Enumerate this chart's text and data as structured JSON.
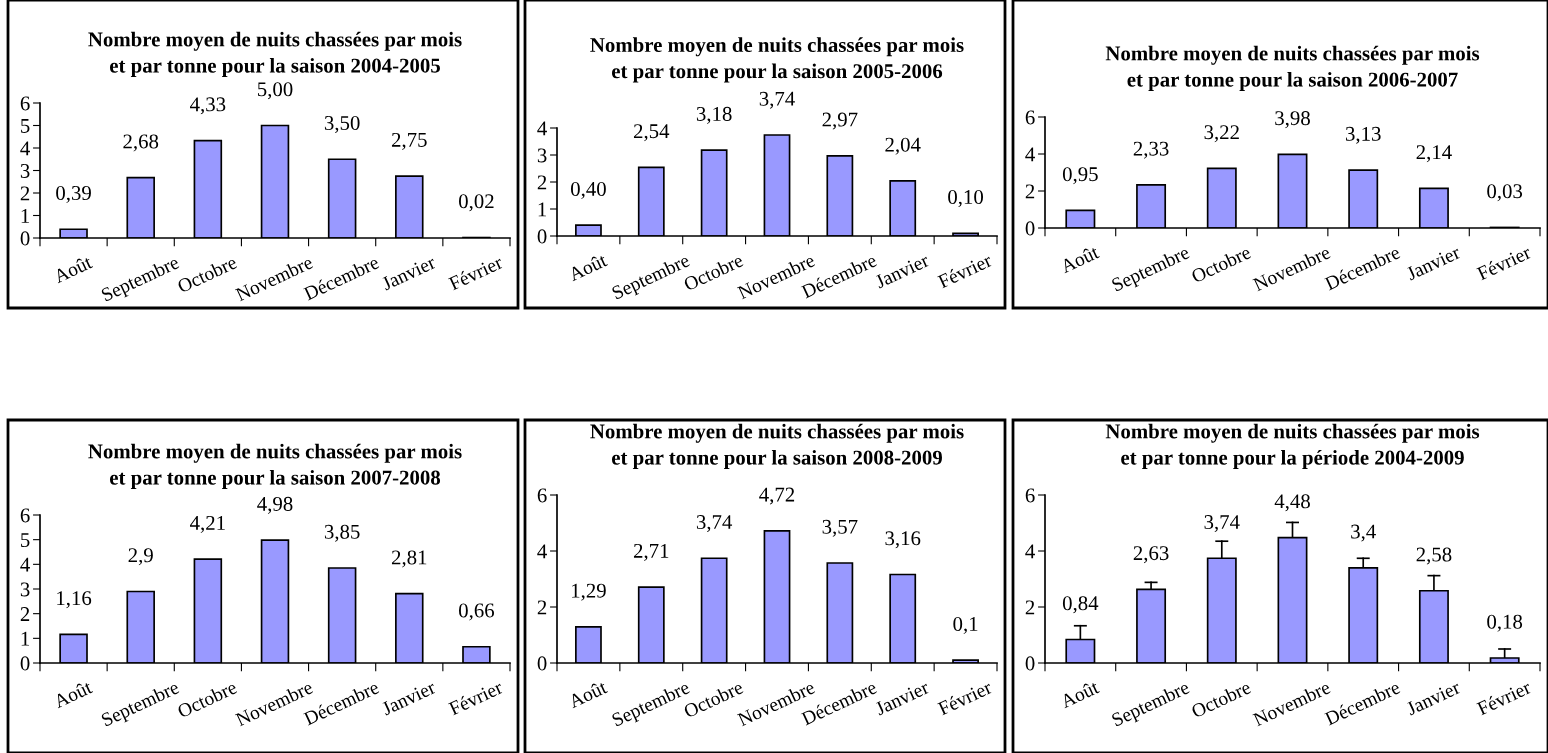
{
  "chart_data": [
    {
      "type": "bar",
      "title": "Nombre moyen de nuits chassées par mois\net par tonne pour la saison 2004-2005",
      "categories": [
        "Août",
        "Septembre",
        "Octobre",
        "Novembre",
        "Décembre",
        "Janvier",
        "Février"
      ],
      "values": [
        0.39,
        2.68,
        4.33,
        5.0,
        3.5,
        2.75,
        0.02
      ],
      "value_labels": [
        "0,39",
        "2,68",
        "4,33",
        "5,00",
        "3,50",
        "2,75",
        "0,02"
      ],
      "color": "#9999ff",
      "ylim": [
        0,
        6
      ],
      "yticks": [
        0,
        1,
        2,
        3,
        4,
        5,
        6
      ],
      "grid": false
    },
    {
      "type": "bar",
      "title": "Nombre moyen de nuits chassées par mois\net par tonne pour la saison 2005-2006",
      "categories": [
        "Août",
        "Septembre",
        "Octobre",
        "Novembre",
        "Décembre",
        "Janvier",
        "Février"
      ],
      "values": [
        0.4,
        2.54,
        3.18,
        3.74,
        2.97,
        2.04,
        0.1
      ],
      "value_labels": [
        "0,40",
        "2,54",
        "3,18",
        "3,74",
        "2,97",
        "2,04",
        "0,10"
      ],
      "color": "#9999ff",
      "ylim": [
        0,
        4
      ],
      "yticks": [
        0,
        1,
        2,
        3,
        4
      ],
      "grid": false
    },
    {
      "type": "bar",
      "title": "Nombre moyen de nuits chassées par mois\net par tonne pour la saison 2006-2007",
      "categories": [
        "Août",
        "Septembre",
        "Octobre",
        "Novembre",
        "Décembre",
        "Janvier",
        "Février"
      ],
      "values": [
        0.95,
        2.33,
        3.22,
        3.98,
        3.13,
        2.14,
        0.03
      ],
      "value_labels": [
        "0,95",
        "2,33",
        "3,22",
        "3,98",
        "3,13",
        "2,14",
        "0,03"
      ],
      "color": "#9999ff",
      "ylim": [
        0,
        6
      ],
      "yticks": [
        0,
        2,
        4,
        6
      ],
      "grid": false
    },
    {
      "type": "bar",
      "title": "Nombre moyen de nuits chassées par mois\net par tonne pour la saison 2007-2008",
      "categories": [
        "Août",
        "Septembre",
        "Octobre",
        "Novembre",
        "Décembre",
        "Janvier",
        "Février"
      ],
      "values": [
        1.16,
        2.9,
        4.21,
        4.98,
        3.85,
        2.81,
        0.66
      ],
      "value_labels": [
        "1,16",
        "2,9",
        "4,21",
        "4,98",
        "3,85",
        "2,81",
        "0,66"
      ],
      "color": "#9999ff",
      "ylim": [
        0,
        6
      ],
      "yticks": [
        0,
        1,
        2,
        3,
        4,
        5,
        6
      ],
      "grid": false
    },
    {
      "type": "bar",
      "title": "Nombre moyen de nuits chassées par mois\net par tonne pour la saison 2008-2009",
      "categories": [
        "Août",
        "Septembre",
        "Octobre",
        "Novembre",
        "Décembre",
        "Janvier",
        "Février"
      ],
      "values": [
        1.29,
        2.71,
        3.74,
        4.72,
        3.57,
        3.16,
        0.1
      ],
      "value_labels": [
        "1,29",
        "2,71",
        "3,74",
        "4,72",
        "3,57",
        "3,16",
        "0,1"
      ],
      "color": "#9999ff",
      "ylim": [
        0,
        6
      ],
      "yticks": [
        0,
        2,
        4,
        6
      ],
      "grid": false
    },
    {
      "type": "bar",
      "title": "Nombre moyen de nuits chassées par mois\net par tonne pour la période 2004-2009",
      "categories": [
        "Août",
        "Septembre",
        "Octobre",
        "Novembre",
        "Décembre",
        "Janvier",
        "Février"
      ],
      "values": [
        0.84,
        2.63,
        3.74,
        4.48,
        3.4,
        2.58,
        0.18
      ],
      "value_labels": [
        "0,84",
        "2,63",
        "3,74",
        "4,48",
        "3,4",
        "2,58",
        "0,18"
      ],
      "errors": [
        [
          0.84,
          1.33
        ],
        [
          2.63,
          2.88
        ],
        [
          3.74,
          4.35
        ],
        [
          4.48,
          5.02
        ],
        [
          3.4,
          3.74
        ],
        [
          2.58,
          3.12
        ],
        [
          0.18,
          0.5
        ]
      ],
      "color": "#9999ff",
      "ylim": [
        0,
        6
      ],
      "yticks": [
        0,
        2,
        4,
        6
      ],
      "grid": false
    }
  ]
}
